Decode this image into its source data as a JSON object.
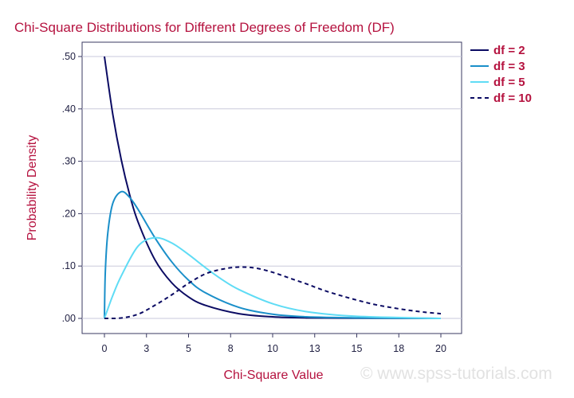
{
  "chart_data": {
    "type": "line",
    "title": "Chi-Square Distributions for Different Degrees of Freedom (DF)",
    "xlabel": "Chi-Square Value",
    "ylabel": "Probability Density",
    "xlim": [
      0,
      20
    ],
    "ylim": [
      0,
      0.5
    ],
    "x_ticks": [
      0,
      2.5,
      5,
      7.5,
      10,
      12.5,
      15,
      17.5,
      20
    ],
    "x_tick_labels": [
      "0",
      "3",
      "5",
      "8",
      "10",
      "13",
      "15",
      "18",
      "20"
    ],
    "y_ticks": [
      0,
      0.1,
      0.2,
      0.3,
      0.4,
      0.5
    ],
    "y_tick_labels": [
      ".00",
      ".10",
      ".20",
      ".30",
      ".40",
      ".50"
    ],
    "grid": "horizontal",
    "legend_position": "right",
    "series": [
      {
        "name": "df = 2",
        "color": "#0b0b63",
        "style": "solid",
        "x": [
          0,
          0.5,
          1,
          1.5,
          2,
          3,
          4,
          5,
          6,
          8,
          10,
          12,
          15,
          20
        ],
        "y": [
          0.5,
          0.389,
          0.303,
          0.236,
          0.184,
          0.112,
          0.068,
          0.041,
          0.025,
          0.009,
          0.003,
          0.001,
          0.0003,
          0.0
        ]
      },
      {
        "name": "df = 3",
        "color": "#1a8fc9",
        "style": "solid",
        "x": [
          0,
          0.05,
          0.2,
          0.5,
          1,
          1.5,
          2,
          3,
          4,
          5,
          6,
          8,
          10,
          12,
          15,
          20
        ],
        "y": [
          0,
          0.087,
          0.163,
          0.22,
          0.242,
          0.231,
          0.208,
          0.154,
          0.108,
          0.073,
          0.049,
          0.021,
          0.008,
          0.003,
          0.001,
          0.0
        ]
      },
      {
        "name": "df = 5",
        "color": "#5fdcf5",
        "style": "solid",
        "x": [
          0,
          0.5,
          1,
          2,
          3,
          4,
          5,
          6,
          7,
          8,
          10,
          12,
          15,
          20
        ],
        "y": [
          0,
          0.044,
          0.081,
          0.138,
          0.154,
          0.144,
          0.122,
          0.097,
          0.074,
          0.055,
          0.028,
          0.013,
          0.004,
          0.0
        ]
      },
      {
        "name": "df = 10",
        "color": "#0b0b63",
        "style": "dashed",
        "x": [
          0,
          1,
          2,
          3,
          4,
          5,
          6,
          7,
          8,
          9,
          10,
          11,
          12,
          13,
          14,
          15,
          16,
          17,
          18,
          19,
          20
        ],
        "y": [
          0,
          0.0008,
          0.008,
          0.025,
          0.045,
          0.067,
          0.085,
          0.094,
          0.098,
          0.096,
          0.088,
          0.077,
          0.066,
          0.054,
          0.044,
          0.035,
          0.027,
          0.021,
          0.016,
          0.012,
          0.009
        ]
      }
    ]
  },
  "watermark": "© www.spss-tutorials.com"
}
